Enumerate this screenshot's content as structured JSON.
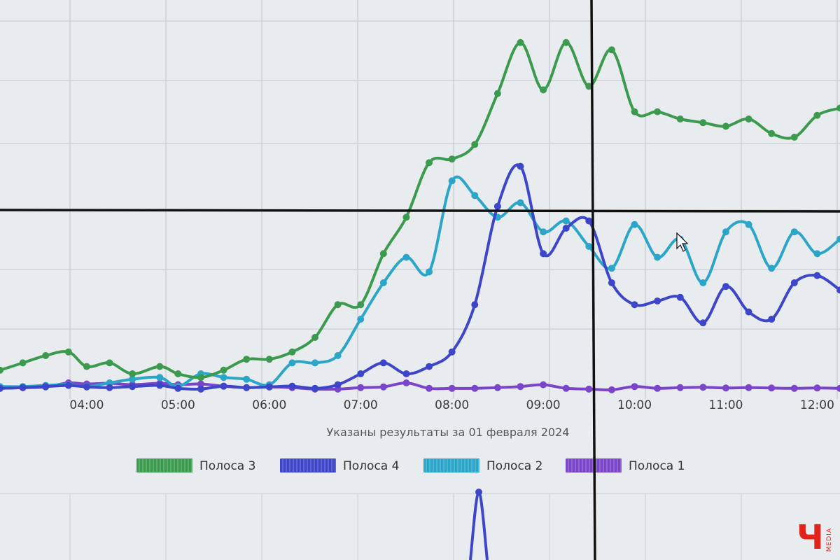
{
  "chart_data": {
    "type": "line",
    "xlabel": "Указаны результаты за 01 февраля 2024",
    "x_tick_labels": [
      "04:00",
      "05:00",
      "06:00",
      "07:00",
      "08:00",
      "09:00",
      "10:00",
      "11:00",
      "12:00"
    ],
    "x_range": [
      3.05,
      12.25
    ],
    "y_range": [
      0,
      100
    ],
    "grid": true,
    "legend_position": "bottom-center",
    "series": [
      {
        "name": "Полоса 3",
        "color": "#3c9a4e",
        "points": [
          [
            3.05,
            6
          ],
          [
            3.3,
            8
          ],
          [
            3.55,
            10
          ],
          [
            3.8,
            11
          ],
          [
            4.0,
            7
          ],
          [
            4.25,
            8
          ],
          [
            4.5,
            5
          ],
          [
            4.8,
            7
          ],
          [
            5.0,
            5
          ],
          [
            5.25,
            4
          ],
          [
            5.5,
            6
          ],
          [
            5.75,
            9
          ],
          [
            6.0,
            9
          ],
          [
            6.25,
            11
          ],
          [
            6.5,
            15
          ],
          [
            6.75,
            24
          ],
          [
            7.0,
            24
          ],
          [
            7.25,
            38
          ],
          [
            7.5,
            48
          ],
          [
            7.75,
            63
          ],
          [
            8.0,
            64
          ],
          [
            8.25,
            68
          ],
          [
            8.5,
            82
          ],
          [
            8.75,
            96
          ],
          [
            9.0,
            83
          ],
          [
            9.25,
            96
          ],
          [
            9.5,
            84
          ],
          [
            9.75,
            94
          ],
          [
            10.0,
            77
          ],
          [
            10.25,
            77
          ],
          [
            10.5,
            75
          ],
          [
            10.75,
            74
          ],
          [
            11.0,
            73
          ],
          [
            11.25,
            75
          ],
          [
            11.5,
            71
          ],
          [
            11.75,
            70
          ],
          [
            12.0,
            76
          ],
          [
            12.25,
            78
          ]
        ]
      },
      {
        "name": "Полоса 4",
        "color": "#3d46c9",
        "points": [
          [
            3.05,
            1
          ],
          [
            3.3,
            1.2
          ],
          [
            3.55,
            1.5
          ],
          [
            3.8,
            1.8
          ],
          [
            4.0,
            1.4
          ],
          [
            4.25,
            1.2
          ],
          [
            4.5,
            1.5
          ],
          [
            4.8,
            1.8
          ],
          [
            5.0,
            1
          ],
          [
            5.25,
            0.8
          ],
          [
            5.5,
            1.6
          ],
          [
            5.75,
            1.2
          ],
          [
            6.0,
            1.4
          ],
          [
            6.25,
            1.6
          ],
          [
            6.5,
            1
          ],
          [
            6.75,
            2
          ],
          [
            7.0,
            5
          ],
          [
            7.25,
            8
          ],
          [
            7.5,
            5
          ],
          [
            7.75,
            7
          ],
          [
            8.0,
            11
          ],
          [
            8.25,
            24
          ],
          [
            8.5,
            51
          ],
          [
            8.75,
            62
          ],
          [
            9.0,
            38
          ],
          [
            9.25,
            45
          ],
          [
            9.5,
            47
          ],
          [
            9.75,
            30
          ],
          [
            10.0,
            24
          ],
          [
            10.25,
            25
          ],
          [
            10.5,
            26
          ],
          [
            10.75,
            19
          ],
          [
            11.0,
            29
          ],
          [
            11.25,
            22
          ],
          [
            11.5,
            20
          ],
          [
            11.75,
            30
          ],
          [
            12.0,
            32
          ],
          [
            12.25,
            28
          ]
        ]
      },
      {
        "name": "Полоса 2",
        "color": "#2ba5c8",
        "points": [
          [
            3.05,
            1.5
          ],
          [
            3.3,
            1.5
          ],
          [
            3.55,
            1.8
          ],
          [
            3.8,
            2
          ],
          [
            4.0,
            1.5
          ],
          [
            4.25,
            2.5
          ],
          [
            4.5,
            3.5
          ],
          [
            4.8,
            4
          ],
          [
            5.0,
            1.5
          ],
          [
            5.25,
            5
          ],
          [
            5.5,
            4
          ],
          [
            5.75,
            3.5
          ],
          [
            6.0,
            2
          ],
          [
            6.25,
            8
          ],
          [
            6.5,
            8
          ],
          [
            6.75,
            10
          ],
          [
            7.0,
            20
          ],
          [
            7.25,
            30
          ],
          [
            7.5,
            37
          ],
          [
            7.75,
            33
          ],
          [
            8.0,
            58
          ],
          [
            8.25,
            54
          ],
          [
            8.5,
            48
          ],
          [
            8.75,
            52
          ],
          [
            9.0,
            44
          ],
          [
            9.25,
            47
          ],
          [
            9.5,
            40
          ],
          [
            9.75,
            34
          ],
          [
            10.0,
            46
          ],
          [
            10.25,
            37
          ],
          [
            10.5,
            42
          ],
          [
            10.75,
            30
          ],
          [
            11.0,
            44
          ],
          [
            11.25,
            46
          ],
          [
            11.5,
            34
          ],
          [
            11.75,
            44
          ],
          [
            12.0,
            38
          ],
          [
            12.25,
            42
          ]
        ]
      },
      {
        "name": "Полоса 1",
        "color": "#7b45c9",
        "points": [
          [
            3.05,
            1
          ],
          [
            3.3,
            1.2
          ],
          [
            3.55,
            1.4
          ],
          [
            3.8,
            2.5
          ],
          [
            4.0,
            2.2
          ],
          [
            4.25,
            2.4
          ],
          [
            4.5,
            2
          ],
          [
            4.8,
            2.4
          ],
          [
            5.0,
            2
          ],
          [
            5.25,
            2.2
          ],
          [
            5.5,
            1.6
          ],
          [
            5.75,
            1.2
          ],
          [
            6.0,
            1.4
          ],
          [
            6.25,
            1.2
          ],
          [
            6.5,
            0.8
          ],
          [
            6.75,
            0.8
          ],
          [
            7.0,
            1.2
          ],
          [
            7.25,
            1.4
          ],
          [
            7.5,
            2.5
          ],
          [
            7.75,
            1
          ],
          [
            8.0,
            1
          ],
          [
            8.25,
            1
          ],
          [
            8.5,
            1.2
          ],
          [
            8.75,
            1.5
          ],
          [
            9.0,
            2
          ],
          [
            9.25,
            1
          ],
          [
            9.5,
            0.8
          ],
          [
            9.75,
            0.6
          ],
          [
            10.0,
            1.5
          ],
          [
            10.25,
            1
          ],
          [
            10.5,
            1.2
          ],
          [
            10.75,
            1.3
          ],
          [
            11.0,
            1.1
          ],
          [
            11.25,
            1.2
          ],
          [
            11.5,
            1.1
          ],
          [
            11.75,
            1
          ],
          [
            12.0,
            1.1
          ],
          [
            12.25,
            1
          ]
        ]
      }
    ]
  },
  "logo": {
    "letter": "Ч",
    "text": "MEDIA",
    "color": "#e2231a"
  }
}
